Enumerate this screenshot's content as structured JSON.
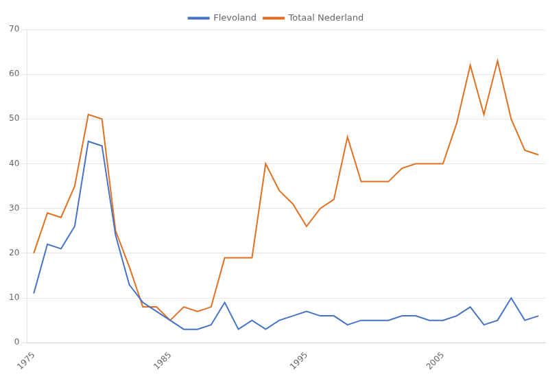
{
  "chart_data": {
    "type": "line",
    "x": [
      1975,
      1976,
      1977,
      1978,
      1979,
      1980,
      1981,
      1982,
      1983,
      1984,
      1985,
      1986,
      1987,
      1988,
      1989,
      1990,
      1991,
      1992,
      1993,
      1994,
      1995,
      1996,
      1997,
      1998,
      1999,
      2000,
      2001,
      2002,
      2003,
      2004,
      2005,
      2006,
      2007,
      2008,
      2009,
      2010,
      2011,
      2012
    ],
    "series": [
      {
        "name": "Flevoland",
        "color": "#4472C4",
        "values": [
          11,
          22,
          21,
          26,
          45,
          44,
          24,
          13,
          9,
          7,
          5,
          3,
          3,
          4,
          9,
          3,
          5,
          3,
          5,
          6,
          7,
          6,
          6,
          4,
          5,
          5,
          5,
          6,
          6,
          5,
          5,
          6,
          8,
          4,
          5,
          10,
          5,
          6
        ]
      },
      {
        "name": "Totaal Nederland",
        "color": "#E07020",
        "values": [
          20,
          29,
          28,
          35,
          51,
          50,
          25,
          17,
          8,
          8,
          5,
          8,
          7,
          8,
          19,
          19,
          19,
          40,
          34,
          31,
          26,
          30,
          32,
          46,
          36,
          36,
          36,
          39,
          40,
          40,
          40,
          49,
          62,
          51,
          63,
          50,
          43,
          42
        ]
      }
    ],
    "xlim": [
      1974.5,
      2012.5
    ],
    "xticks": [
      1975,
      1985,
      1995,
      2005
    ],
    "ylim": [
      0,
      70
    ],
    "yticks": [
      0,
      10,
      20,
      30,
      40,
      50,
      60,
      70
    ],
    "grid": "y",
    "legend": "top"
  }
}
